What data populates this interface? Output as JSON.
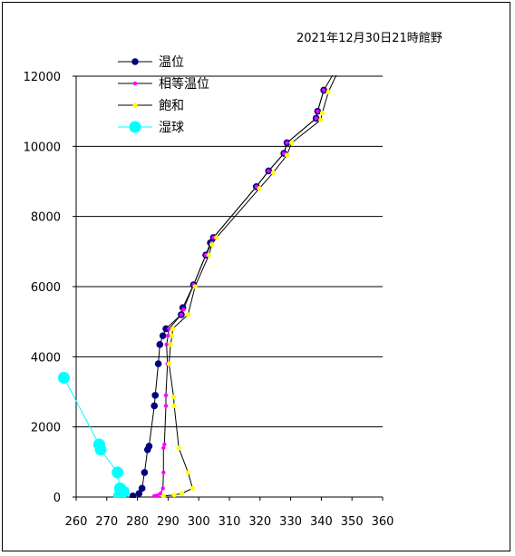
{
  "chart_data": {
    "type": "scatter",
    "title": "2021年12月30日21時館野",
    "xlim": [
      260,
      360
    ],
    "ylim": [
      0,
      12000
    ],
    "xticks": [
      260,
      270,
      280,
      290,
      300,
      310,
      320,
      330,
      340,
      350,
      360
    ],
    "yticks": [
      0,
      2000,
      4000,
      6000,
      8000,
      10000,
      12000
    ],
    "grid": "horizontal",
    "legend_position": "top-left",
    "series": [
      {
        "name": "温位",
        "color": "#000080",
        "line_color": "#000000",
        "marker_size": 3.8,
        "points": [
          [
            278.5,
            30
          ],
          [
            280.5,
            100
          ],
          [
            281.5,
            250
          ],
          [
            282.3,
            700
          ],
          [
            283.3,
            1350
          ],
          [
            283.8,
            1450
          ],
          [
            285.5,
            2600
          ],
          [
            285.8,
            2900
          ],
          [
            286.8,
            3800
          ],
          [
            287.3,
            4350
          ],
          [
            288.3,
            4600
          ],
          [
            289.3,
            4800
          ],
          [
            294.3,
            5200
          ],
          [
            294.8,
            5400
          ],
          [
            298.3,
            6050
          ],
          [
            302.3,
            6900
          ],
          [
            303.8,
            7250
          ],
          [
            304.8,
            7400
          ],
          [
            318.8,
            8850
          ],
          [
            322.8,
            9300
          ],
          [
            327.8,
            9800
          ],
          [
            328.8,
            10100
          ],
          [
            338.3,
            10800
          ],
          [
            338.8,
            11000
          ],
          [
            340.8,
            11600
          ],
          [
            345.5,
            12300
          ]
        ]
      },
      {
        "name": "相等温位",
        "color": "#ff00ff",
        "line_color": "#000000",
        "marker_size": 2.2,
        "points": [
          [
            285.5,
            30
          ],
          [
            286.5,
            50
          ],
          [
            287.5,
            100
          ],
          [
            288.3,
            250
          ],
          [
            288.5,
            700
          ],
          [
            288.5,
            1400
          ],
          [
            288.8,
            1500
          ],
          [
            289.3,
            2600
          ],
          [
            289.3,
            2900
          ],
          [
            289.8,
            3800
          ],
          [
            289.5,
            4350
          ],
          [
            290.0,
            4600
          ],
          [
            290.3,
            4800
          ],
          [
            294.3,
            5200
          ],
          [
            295.0,
            5350
          ],
          [
            298.3,
            6050
          ],
          [
            302.3,
            6900
          ],
          [
            304.3,
            7250
          ],
          [
            304.8,
            7400
          ],
          [
            318.8,
            8850
          ],
          [
            322.8,
            9300
          ],
          [
            327.8,
            9800
          ],
          [
            328.8,
            10100
          ],
          [
            338.3,
            10800
          ],
          [
            338.8,
            11000
          ],
          [
            340.8,
            11600
          ]
        ]
      },
      {
        "name": "飽和",
        "color": "#ffff00",
        "line_color": "#000000",
        "marker_size": 2.6,
        "points": [
          [
            288.5,
            30
          ],
          [
            292.0,
            60
          ],
          [
            294.5,
            100
          ],
          [
            298.0,
            250
          ],
          [
            296.5,
            700
          ],
          [
            293.5,
            1400
          ],
          [
            292.0,
            2600
          ],
          [
            291.8,
            2850
          ],
          [
            290.3,
            3800
          ],
          [
            290.8,
            4350
          ],
          [
            291.3,
            4600
          ],
          [
            291.5,
            4800
          ],
          [
            296.5,
            5200
          ],
          [
            298.8,
            6000
          ],
          [
            303.3,
            6900
          ],
          [
            304.3,
            7200
          ],
          [
            305.8,
            7400
          ],
          [
            319.8,
            8800
          ],
          [
            324.3,
            9250
          ],
          [
            328.8,
            9750
          ],
          [
            330.3,
            10100
          ],
          [
            339.8,
            10750
          ],
          [
            340.3,
            10950
          ],
          [
            342.3,
            11550
          ],
          [
            346.3,
            12300
          ]
        ]
      },
      {
        "name": "湿球",
        "color": "#00ffff",
        "line_color": "#00ffff",
        "marker_size": 6.5,
        "points": [
          [
            256.0,
            3400
          ],
          [
            267.5,
            1500
          ],
          [
            268.0,
            1350
          ],
          [
            273.5,
            700
          ],
          [
            274.3,
            250
          ],
          [
            275.0,
            180
          ],
          [
            275.5,
            150
          ],
          [
            274.8,
            100
          ],
          [
            274.5,
            50
          ],
          [
            274.0,
            30
          ]
        ]
      }
    ]
  }
}
